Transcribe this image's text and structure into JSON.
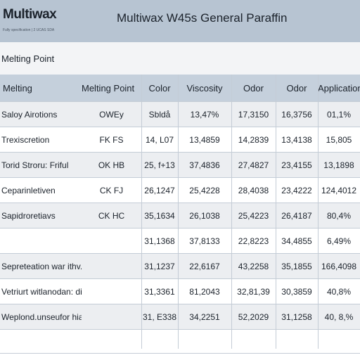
{
  "header": {
    "brand": "Multiwax",
    "brand_sub": "Fully specification | 2 UCAS SDA",
    "title": "Multiwax W45s General Paraffin"
  },
  "section": {
    "title": "Melting Point"
  },
  "table": {
    "columns": [
      "Melting",
      "Melting Point",
      "Color",
      "Viscosity",
      "Odor",
      "Odor",
      "Applications"
    ],
    "rows": [
      [
        "Saloy Airotions",
        "OWEy",
        "Sbldå",
        "13,47%",
        "17,3150",
        "16,3756",
        "01,1%"
      ],
      [
        "Trexiscretion",
        "FK FS",
        "14, L07",
        "13,4859",
        "14,2839",
        "13,4138",
        "15,805"
      ],
      [
        "Torid Stroru: Friful",
        "OK HB",
        "25, f+13",
        "37,4836",
        "27,4827",
        "23,4155",
        "13,1898"
      ],
      [
        "Ceparinletiven",
        "CK FJ",
        "26,1247",
        "25,4228",
        "28,4038",
        "23,4222",
        "124,4012"
      ],
      [
        "Sapidroretiavs",
        "CK HC",
        "35,1634",
        "26,1038",
        "25,4223",
        "26,4187",
        "80,4%"
      ],
      [
        "",
        "",
        "31,1368",
        "37,8133",
        "22,8223",
        "34,4855",
        "6,49%"
      ],
      [
        "Sepreteation war ithv.aties",
        "",
        "31,1237",
        "22,6167",
        "43,2258",
        "35,1855",
        "166,4098"
      ],
      [
        "Vetriurt witlanodan: difetiesd wid the thesmaw",
        "",
        "31,3361",
        "81,2043",
        "32,81,39",
        "30,3859",
        "40,8%"
      ],
      [
        "Weplond.unseufor hiats sterin fary Proavitation.",
        "",
        "31, E338",
        "34,2251",
        "52,2029",
        "31,1258",
        "40, 8,%"
      ]
    ],
    "shaded_rows": [
      0,
      2,
      4,
      6,
      8
    ],
    "colors": {
      "header_bg": "#c5d0dc",
      "top_bar_bg": "#b7c4d2",
      "stripe_bg": "#eceef1"
    }
  }
}
